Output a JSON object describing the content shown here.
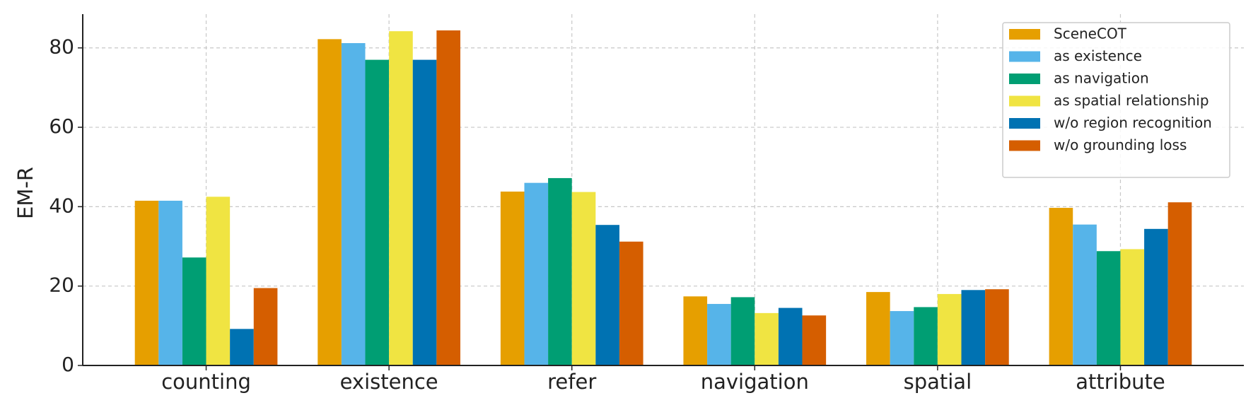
{
  "chart_data": {
    "type": "bar",
    "y_label": "EM-R",
    "categories": [
      "counting",
      "existence",
      "refer",
      "navigation",
      "spatial",
      "attribute"
    ],
    "series": [
      {
        "name": "SceneCOT",
        "color": "#E69F00",
        "values": [
          41.5,
          82.2,
          43.8,
          17.4,
          18.5,
          39.7
        ]
      },
      {
        "name": "as existence",
        "color": "#56B4E9",
        "values": [
          41.5,
          81.2,
          46.0,
          15.5,
          13.7,
          35.5
        ]
      },
      {
        "name": "as navigation",
        "color": "#009E73",
        "values": [
          27.2,
          77.0,
          47.2,
          17.2,
          14.7,
          28.8
        ]
      },
      {
        "name": "as spatial relationship",
        "color": "#F0E442",
        "values": [
          42.5,
          84.2,
          43.7,
          13.2,
          18.0,
          29.3
        ]
      },
      {
        "name": "w/o region recognition",
        "color": "#0072B2",
        "values": [
          9.2,
          77.0,
          35.4,
          14.5,
          19.0,
          34.4
        ]
      },
      {
        "name": "w/o grounding loss",
        "color": "#D55E00",
        "values": [
          19.5,
          84.4,
          31.2,
          12.6,
          19.2,
          41.1
        ]
      }
    ],
    "ylim": [
      0,
      88.5
    ],
    "yticks": [
      0,
      20,
      40,
      60,
      80
    ],
    "grid": true,
    "legend": "upper right"
  }
}
